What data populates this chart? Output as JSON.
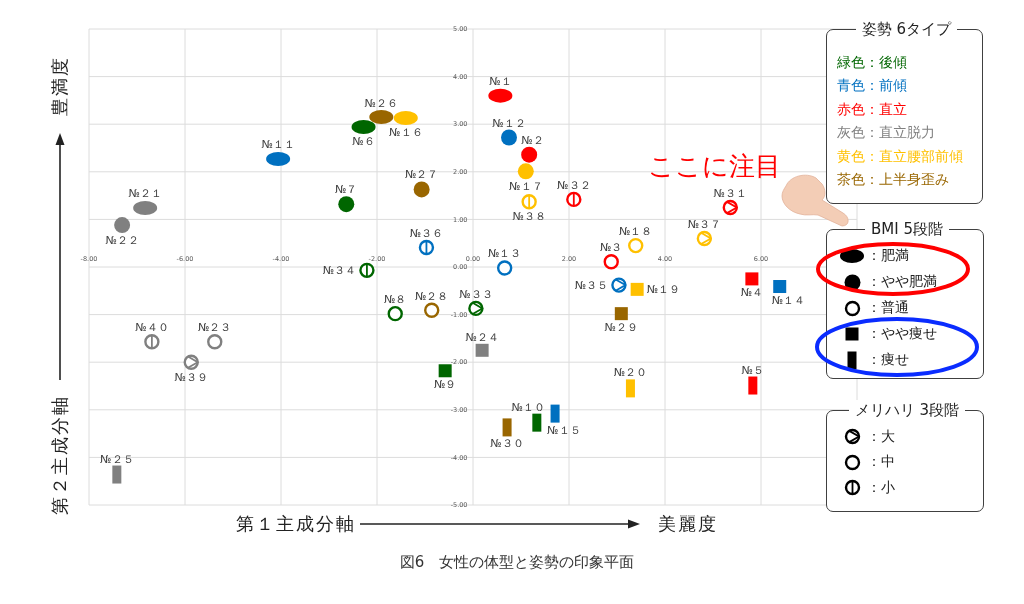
{
  "chart_data": {
    "type": "scatter",
    "xlabel": "第１主成分軸",
    "ylabel": "第２主成分軸",
    "xlim": [
      -8,
      8
    ],
    "ylim": [
      -5,
      5
    ],
    "xticks": [
      {
        "value": -8,
        "label": "-8.00"
      },
      {
        "value": -6,
        "label": "-6.00"
      },
      {
        "value": -4,
        "label": "-4.00"
      },
      {
        "value": -2,
        "label": "-2.00"
      },
      {
        "value": 0,
        "label": "0.00"
      },
      {
        "value": 2,
        "label": "2.00"
      },
      {
        "value": 4,
        "label": "4.00"
      },
      {
        "value": 6,
        "label": "6.00"
      },
      {
        "value": 8,
        "label": null
      }
    ],
    "yticks": [
      {
        "value": -5,
        "label": "-5.00"
      },
      {
        "value": -4,
        "label": "-4.00"
      },
      {
        "value": -3,
        "label": "-3.00"
      },
      {
        "value": -2,
        "label": "-2.00"
      },
      {
        "value": -1,
        "label": "-1.00"
      },
      {
        "value": 0,
        "label": "0.00"
      },
      {
        "value": 1,
        "label": "1.00"
      },
      {
        "value": 2,
        "label": "2.00"
      },
      {
        "value": 3,
        "label": "3.00"
      },
      {
        "value": 4,
        "label": "4.00"
      },
      {
        "value": 5,
        "label": "5.00"
      }
    ],
    "grid": true,
    "legend_title": "姿勢 6タイプ",
    "annotations": [
      "ここに注目",
      "BMI 5段階",
      "：肥満",
      "：やや肥満",
      "：普通",
      "：やや痩せ",
      "：痩せ",
      "メリハリ 3段階",
      "：大",
      "：中",
      "：小",
      "美麗度",
      "豊満度",
      "図6　女性の体型と姿勢の印象平面",
      "緑色：後傾",
      "青色：前傾",
      "赤色：直立",
      "灰色：直立脱力",
      "黄色：直立腰部前傾",
      "茶色：上半身歪み",
      {
        "text": "№６",
        "x": -2.28,
        "y": 2.94
      },
      {
        "text": "№７",
        "x": -2.64,
        "y": 1.32
      },
      {
        "text": "№８",
        "x": -1.62,
        "y": -0.98
      },
      {
        "text": "№９",
        "x": -0.58,
        "y": -2.18
      },
      {
        "text": "№１０",
        "x": 1.33,
        "y": -3.27
      },
      {
        "text": "№３３",
        "x": 0.06,
        "y": -0.87
      },
      {
        "text": "№３４",
        "x": -2.21,
        "y": -0.07
      },
      {
        "text": "№１１",
        "x": -4.06,
        "y": 2.27
      },
      {
        "text": "№１２",
        "x": 0.75,
        "y": 2.72
      },
      {
        "text": "№１３",
        "x": 0.66,
        "y": -0.02
      },
      {
        "text": "№１４",
        "x": 6.39,
        "y": -0.41
      },
      {
        "text": "№１５",
        "x": 1.71,
        "y": -3.08
      },
      {
        "text": "№３５",
        "x": 3.04,
        "y": -0.38
      },
      {
        "text": "№３６",
        "x": -0.97,
        "y": 0.41
      },
      {
        "text": "№１",
        "x": 0.57,
        "y": 3.6
      },
      {
        "text": "№２",
        "x": 1.17,
        "y": 2.36
      },
      {
        "text": "№３",
        "x": 2.88,
        "y": 0.11
      },
      {
        "text": "№４",
        "x": 5.81,
        "y": -0.25
      },
      {
        "text": "№５",
        "x": 5.83,
        "y": -2.49
      },
      {
        "text": "№３１",
        "x": 5.36,
        "y": 1.25
      },
      {
        "text": "№３２",
        "x": 2.1,
        "y": 1.42
      },
      {
        "text": "№２１",
        "x": -6.83,
        "y": 1.24
      },
      {
        "text": "№２２",
        "x": -7.31,
        "y": 0.88
      },
      {
        "text": "№２３",
        "x": -5.38,
        "y": -1.57
      },
      {
        "text": "№２４",
        "x": 0.19,
        "y": -1.75
      },
      {
        "text": "№２５",
        "x": -7.42,
        "y": -4.36
      },
      {
        "text": "№３９",
        "x": -5.87,
        "y": -2.0
      },
      {
        "text": "№４０",
        "x": -6.69,
        "y": -1.57
      },
      {
        "text": "№１６",
        "x": -1.4,
        "y": 3.13
      },
      {
        "text": "№１７",
        "x": 1.1,
        "y": 2.01
      },
      {
        "text": "№１８",
        "x": 3.39,
        "y": 0.45
      },
      {
        "text": "№１９",
        "x": 3.42,
        "y": -0.47
      },
      {
        "text": "№２０",
        "x": 3.28,
        "y": -2.55
      },
      {
        "text": "№３７",
        "x": 4.82,
        "y": 0.6
      },
      {
        "text": "№３８",
        "x": 1.17,
        "y": 1.37
      },
      {
        "text": "№２６",
        "x": -1.91,
        "y": 3.15
      },
      {
        "text": "№２７",
        "x": -1.07,
        "y": 1.63
      },
      {
        "text": "№２８",
        "x": -0.86,
        "y": -0.91
      },
      {
        "text": "№２９",
        "x": 3.09,
        "y": -0.98
      },
      {
        "text": "№３０",
        "x": 0.71,
        "y": -3.37
      }
    ],
    "series": [
      {
        "x": [
          -2.28,
          -4.06,
          0.57,
          -6.83,
          -1.4,
          -1.91
        ],
        "values": [
          2.94,
          2.27,
          3.6,
          1.24,
          3.13,
          3.15
        ],
        "colors": [
          "#006600",
          "#0070c0",
          "#ff0000",
          "#808080",
          "#ffc000",
          "#996600"
        ]
      },
      {
        "x": [
          -2.64,
          0.75,
          1.17,
          -7.31,
          1.1,
          -1.07
        ],
        "values": [
          1.32,
          2.72,
          2.36,
          0.88,
          2.01,
          1.63
        ],
        "colors": [
          "#006600",
          "#0070c0",
          "#ff0000",
          "#808080",
          "#ffc000",
          "#996600"
        ]
      },
      {
        "x": [
          -1.62,
          0.66,
          2.88,
          -5.38,
          3.39,
          -0.86
        ],
        "values": [
          -0.98,
          -0.02,
          0.11,
          -1.57,
          0.45,
          -0.91
        ],
        "colors": [
          "#006600",
          "#0070c0",
          "#ff0000",
          "#808080",
          "#ffc000",
          "#996600"
        ]
      },
      {
        "x": [
          -0.58,
          6.39,
          5.81,
          0.19,
          3.42,
          3.09
        ],
        "values": [
          -2.18,
          -0.41,
          -0.25,
          -1.75,
          -0.47,
          -0.98
        ],
        "colors": [
          "#006600",
          "#0070c0",
          "#ff0000",
          "#808080",
          "#ffc000",
          "#996600"
        ]
      },
      {
        "x": [
          1.33,
          1.71,
          5.83,
          -7.42,
          3.28,
          0.71
        ],
        "values": [
          -3.27,
          -3.08,
          -2.49,
          -4.36,
          -2.55,
          -3.37
        ],
        "colors": [
          "#006600",
          "#0070c0",
          "#ff0000",
          "#808080",
          "#ffc000",
          "#996600"
        ]
      },
      {
        "x": [
          0.06,
          3.04,
          5.36,
          -5.87,
          4.82
        ],
        "values": [
          -0.87,
          -0.38,
          1.25,
          -2.0,
          0.6
        ],
        "colors": [
          "#006600",
          "#0070c0",
          "#ff0000",
          "#808080",
          "#ffc000"
        ]
      },
      {
        "x": [
          -2.21,
          -0.97,
          2.1,
          -6.69,
          1.17
        ],
        "values": [
          -0.07,
          0.41,
          1.42,
          -1.57,
          1.37
        ],
        "colors": [
          "#006600",
          "#0070c0",
          "#ff0000",
          "#808080",
          "#ffc000"
        ]
      }
    ]
  }
}
